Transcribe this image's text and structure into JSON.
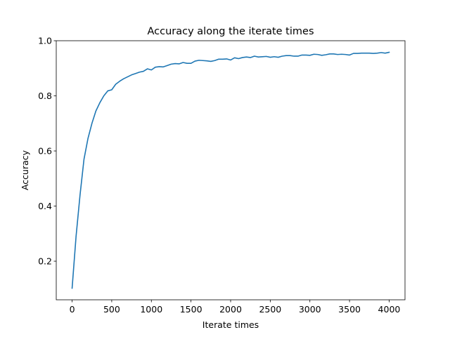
{
  "chart_data": {
    "type": "line",
    "title": "Accuracy along the iterate times",
    "xlabel": "Iterate times",
    "ylabel": "Accuracy",
    "xlim": [
      -200,
      4200
    ],
    "ylim": [
      0.06,
      1.0
    ],
    "xticks": [
      0,
      500,
      1000,
      1500,
      2000,
      2500,
      3000,
      3500,
      4000
    ],
    "xtick_labels": [
      "0",
      "500",
      "1000",
      "1500",
      "2000",
      "2500",
      "3000",
      "3500",
      "4000"
    ],
    "yticks": [
      0.2,
      0.4,
      0.6,
      0.8,
      1.0
    ],
    "ytick_labels": [
      "0.2",
      "0.4",
      "0.6",
      "0.8",
      "1.0"
    ],
    "grid": false,
    "series": [
      {
        "color": "#1f77b4",
        "x": [
          0,
          50,
          100,
          150,
          200,
          250,
          300,
          350,
          400,
          450,
          500,
          550,
          600,
          650,
          700,
          750,
          800,
          850,
          900,
          950,
          1000,
          1050,
          1100,
          1150,
          1200,
          1250,
          1300,
          1350,
          1400,
          1450,
          1500,
          1550,
          1600,
          1650,
          1700,
          1750,
          1800,
          1850,
          1900,
          1950,
          2000,
          2050,
          2100,
          2150,
          2200,
          2250,
          2300,
          2350,
          2400,
          2450,
          2500,
          2550,
          2600,
          2650,
          2700,
          2750,
          2800,
          2850,
          2900,
          2950,
          3000,
          3050,
          3100,
          3150,
          3200,
          3250,
          3300,
          3350,
          3400,
          3450,
          3500,
          3550,
          3600,
          3650,
          3700,
          3750,
          3800,
          3850,
          3900,
          3950,
          4000
        ],
        "y": [
          0.102,
          0.29,
          0.44,
          0.57,
          0.645,
          0.7,
          0.745,
          0.775,
          0.8,
          0.818,
          0.822,
          0.842,
          0.853,
          0.862,
          0.869,
          0.876,
          0.881,
          0.886,
          0.889,
          0.898,
          0.894,
          0.904,
          0.906,
          0.905,
          0.91,
          0.915,
          0.917,
          0.916,
          0.921,
          0.918,
          0.918,
          0.926,
          0.929,
          0.928,
          0.927,
          0.925,
          0.928,
          0.933,
          0.933,
          0.934,
          0.93,
          0.938,
          0.935,
          0.939,
          0.941,
          0.939,
          0.944,
          0.941,
          0.942,
          0.943,
          0.94,
          0.942,
          0.94,
          0.944,
          0.946,
          0.946,
          0.944,
          0.944,
          0.948,
          0.948,
          0.947,
          0.951,
          0.95,
          0.947,
          0.949,
          0.952,
          0.952,
          0.95,
          0.951,
          0.95,
          0.948,
          0.954,
          0.954,
          0.955,
          0.955,
          0.955,
          0.954,
          0.955,
          0.957,
          0.955,
          0.958
        ]
      }
    ]
  }
}
